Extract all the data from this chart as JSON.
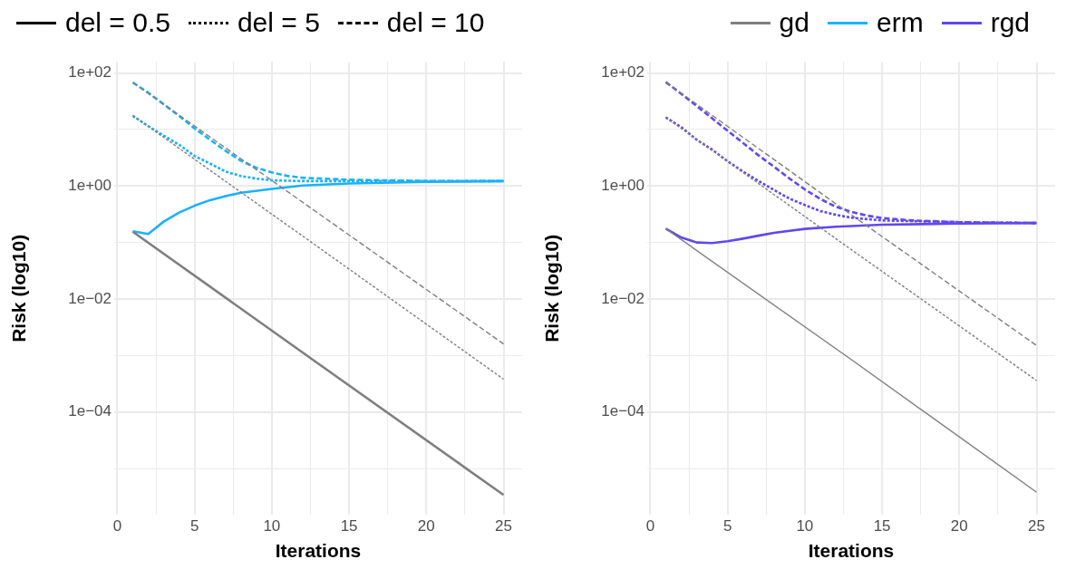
{
  "chart_data": [
    {
      "type": "line",
      "xlabel": "Iterations",
      "ylabel": "Risk (log10)",
      "log": "y",
      "grid": true,
      "legend": "top",
      "marker": "none",
      "xlim": [
        -0.2,
        26.2
      ],
      "xticks": [
        0,
        {
          "value": 2.5,
          "label": null
        },
        5,
        {
          "value": 7.5,
          "label": null
        },
        10,
        {
          "value": 12.5,
          "label": null
        },
        15,
        {
          "value": 17.5,
          "label": null
        },
        20,
        {
          "value": 22.5,
          "label": null
        },
        25
      ],
      "ylim": [
        1.5e-06,
        158
      ],
      "yticks": [
        {
          "value": 1e-05,
          "label": null
        },
        {
          "value": 0.0001,
          "label": "1e−04"
        },
        {
          "value": 0.001,
          "label": null
        },
        {
          "value": 0.01,
          "label": "1e−02"
        },
        {
          "value": 0.1,
          "label": null
        },
        {
          "value": 1,
          "label": "1e+00"
        },
        {
          "value": 10,
          "label": null
        },
        {
          "value": 100,
          "label": "1e+02"
        }
      ],
      "series": [
        {
          "name": "del = 0.5",
          "color": "#000000",
          "line_style": "solid"
        },
        {
          "name": "del = 5",
          "color": "#000000",
          "line_style": "dotted"
        },
        {
          "name": "del = 10",
          "color": "#000000",
          "line_style": "dashed"
        },
        {
          "name": "gd",
          "color": "#7f7f7f",
          "line_style": "solid",
          "x": [
            1,
            13,
            25
          ],
          "values": [
            0.155,
            0.00072,
            3.4e-06
          ]
        },
        {
          "color": "#7f7f7f",
          "line_style": "dotted",
          "x": [
            1,
            13,
            25
          ],
          "values": [
            17.8,
            0.083,
            0.00038
          ]
        },
        {
          "color": "#7f7f7f",
          "line_style": "dashed",
          "x": [
            1,
            13,
            25
          ],
          "values": [
            68,
            0.33,
            0.0016
          ]
        },
        {
          "name": "erm",
          "color": "#19b2fa",
          "line_style": "solid",
          "x": [
            1,
            2,
            3,
            4,
            5,
            6,
            7,
            8,
            10,
            12,
            15,
            20,
            25
          ],
          "values": [
            0.158,
            0.141,
            0.234,
            0.339,
            0.447,
            0.562,
            0.66,
            0.76,
            0.89,
            1.02,
            1.11,
            1.18,
            1.22
          ]
        },
        {
          "color": "#19b2fa",
          "line_style": "dotted",
          "x": [
            1,
            2,
            3,
            4,
            5,
            6,
            7,
            8,
            9,
            10,
            12,
            25
          ],
          "values": [
            17.4,
            11.5,
            7.8,
            5.4,
            3.4,
            2.5,
            1.8,
            1.5,
            1.35,
            1.26,
            1.22,
            1.22
          ]
        },
        {
          "color": "#19b2fa",
          "line_style": "dashed",
          "x": [
            1,
            2,
            3,
            4,
            5,
            6,
            7,
            8,
            9,
            10,
            11,
            12,
            15,
            20,
            25
          ],
          "values": [
            68,
            45,
            28,
            17.4,
            10.5,
            6.6,
            4.2,
            2.8,
            2.1,
            1.74,
            1.51,
            1.4,
            1.29,
            1.23,
            1.22
          ]
        }
      ]
    },
    {
      "type": "line",
      "xlabel": "Iterations",
      "ylabel": "Risk (log10)",
      "log": "y",
      "grid": true,
      "legend": "top",
      "marker": "none",
      "xlim": [
        -0.2,
        26.2
      ],
      "xticks": [
        0,
        {
          "value": 2.5,
          "label": null
        },
        5,
        {
          "value": 7.5,
          "label": null
        },
        10,
        {
          "value": 12.5,
          "label": null
        },
        15,
        {
          "value": 17.5,
          "label": null
        },
        20,
        {
          "value": 22.5,
          "label": null
        },
        25
      ],
      "ylim": [
        1.5e-06,
        158
      ],
      "yticks": [
        {
          "value": 1e-05,
          "label": null
        },
        {
          "value": 0.0001,
          "label": "1e−04"
        },
        {
          "value": 0.001,
          "label": null
        },
        {
          "value": 0.01,
          "label": "1e−02"
        },
        {
          "value": 0.1,
          "label": null
        },
        {
          "value": 1,
          "label": "1e+00"
        },
        {
          "value": 10,
          "label": null
        },
        {
          "value": 100,
          "label": "1e+02"
        }
      ],
      "series": [
        {
          "color": "#7f7f7f",
          "line_style": "solid",
          "x": [
            1,
            13,
            25
          ],
          "values": [
            0.176,
            0.00085,
            3.8e-06
          ]
        },
        {
          "color": "#7f7f7f",
          "line_style": "dotted",
          "x": [
            1,
            13,
            25
          ],
          "values": [
            16.4,
            0.075,
            0.00036
          ]
        },
        {
          "color": "#7f7f7f",
          "line_style": "dashed",
          "x": [
            1,
            13,
            25
          ],
          "values": [
            69,
            0.31,
            0.0015
          ]
        },
        {
          "name": "rgd",
          "color": "#5f48f2",
          "line_style": "solid",
          "x": [
            1,
            2,
            3,
            4,
            5,
            6,
            7,
            8,
            10,
            12,
            15,
            20,
            25
          ],
          "values": [
            0.176,
            0.123,
            0.1,
            0.098,
            0.105,
            0.117,
            0.132,
            0.148,
            0.174,
            0.19,
            0.207,
            0.216,
            0.221
          ]
        },
        {
          "color": "#5f48f2",
          "line_style": "dotted",
          "x": [
            1,
            2,
            3,
            4,
            5,
            6,
            7,
            8,
            9,
            10,
            11,
            12,
            13,
            15,
            20,
            25
          ],
          "values": [
            16.4,
            11,
            6.6,
            4.4,
            2.75,
            1.8,
            1.23,
            0.85,
            0.6,
            0.46,
            0.36,
            0.31,
            0.275,
            0.245,
            0.229,
            0.221
          ]
        },
        {
          "color": "#5f48f2",
          "line_style": "dashed",
          "x": [
            1,
            2,
            3,
            4,
            5,
            6,
            7,
            8,
            9,
            10,
            11,
            12,
            13,
            14,
            15,
            17,
            20,
            25
          ],
          "values": [
            69,
            43,
            26,
            15.8,
            9.5,
            5.8,
            3.5,
            2.2,
            1.36,
            0.87,
            0.59,
            0.43,
            0.35,
            0.3,
            0.27,
            0.245,
            0.229,
            0.221
          ]
        }
      ]
    }
  ]
}
